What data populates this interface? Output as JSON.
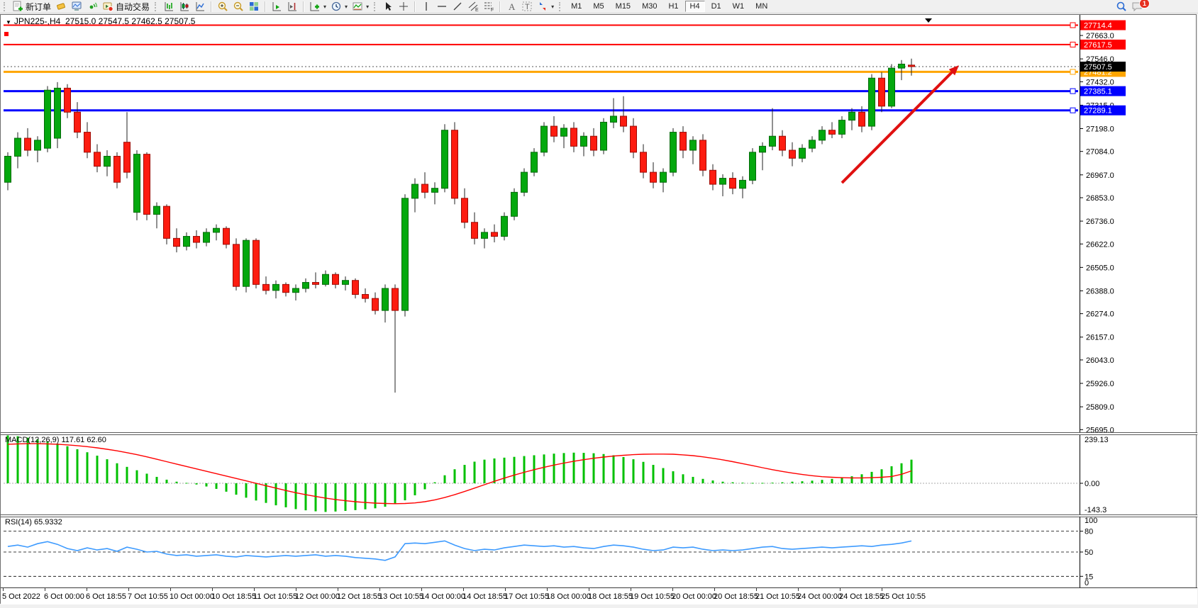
{
  "toolbar": {
    "new_order": "新订单",
    "autotrading": "自动交易",
    "timeframes": [
      "M1",
      "M5",
      "M15",
      "M30",
      "H1",
      "H4",
      "D1",
      "W1",
      "MN"
    ],
    "active_timeframe": "H4",
    "notification_count": "1"
  },
  "chart": {
    "symbol_period": "JPN225-,H4",
    "ohlc_text": "27515.0 27547.5 27462.5 27507.5",
    "bid_badge": "27507.5"
  },
  "colors": {
    "bull": "#04a80e",
    "bull_edge": "#026a08",
    "bear": "#fd1c10",
    "bear_edge": "#9e0b05",
    "wick": "#222222",
    "macd_hist": "#00c000",
    "macd_signal": "#ff0000",
    "rsi_line": "#3e9bff",
    "level_red": "#ff0000",
    "level_orange": "#ffa500",
    "level_blue": "#0000ff",
    "arrow": "#e01010",
    "bid_badge_bg": "#000000"
  },
  "chart_data": [
    {
      "type": "candlestick",
      "title": "JPN225- H4",
      "ylim": [
        25674,
        27741
      ],
      "axis_ticks": [
        27663,
        27546,
        27432,
        27315,
        27198,
        27084,
        26967,
        26853,
        26736,
        26622,
        26505,
        26388,
        26274,
        26157,
        26043,
        25926,
        25809,
        25695
      ],
      "levels": [
        {
          "price": 27714.4,
          "label": "27714.4",
          "color": "#ff0000",
          "width": 2
        },
        {
          "price": 27617.5,
          "label": "27617.5",
          "color": "#ff0000",
          "width": 2
        },
        {
          "price": 27481.2,
          "label": "27481.2",
          "color": "#ffa500",
          "width": 3
        },
        {
          "price": 27385.1,
          "label": "27385.1",
          "color": "#0000ff",
          "width": 3
        },
        {
          "price": 27289.1,
          "label": "27289.1",
          "color": "#0000ff",
          "width": 3
        }
      ],
      "bid": 27507.5,
      "time_labels": [
        "5 Oct 2022",
        "6 Oct 00:00",
        "6 Oct 18:55",
        "7 Oct 10:55",
        "10 Oct 00:00",
        "10 Oct 18:55",
        "11 Oct 10:55",
        "12 Oct 00:00",
        "12 Oct 18:55",
        "13 Oct 10:55",
        "14 Oct 00:00",
        "14 Oct 18:55",
        "17 Oct 10:55",
        "18 Oct 00:00",
        "18 Oct 18:55",
        "19 Oct 10:55",
        "20 Oct 00:00",
        "20 Oct 18:55",
        "21 Oct 10:55",
        "24 Oct 00:00",
        "24 Oct 18:55",
        "25 Oct 10:55"
      ],
      "candles_ohlc": [
        [
          26930,
          27080,
          26890,
          27060
        ],
        [
          27060,
          27180,
          27000,
          27150
        ],
        [
          27150,
          27200,
          27060,
          27090
        ],
        [
          27090,
          27160,
          27030,
          27140
        ],
        [
          27100,
          27410,
          27080,
          27390
        ],
        [
          27150,
          27430,
          27100,
          27400
        ],
        [
          27400,
          27420,
          27250,
          27280
        ],
        [
          27280,
          27330,
          27150,
          27180
        ],
        [
          27180,
          27230,
          27050,
          27080
        ],
        [
          27080,
          27120,
          26980,
          27010
        ],
        [
          27010,
          27090,
          26960,
          27060
        ],
        [
          27060,
          27080,
          26900,
          26930
        ],
        [
          27130,
          27280,
          26950,
          26980
        ],
        [
          26780,
          27090,
          26740,
          27070
        ],
        [
          27070,
          27080,
          26740,
          26770
        ],
        [
          26770,
          26830,
          26700,
          26810
        ],
        [
          26810,
          26820,
          26620,
          26650
        ],
        [
          26650,
          26700,
          26580,
          26610
        ],
        [
          26610,
          26680,
          26590,
          26660
        ],
        [
          26660,
          26690,
          26600,
          26630
        ],
        [
          26630,
          26700,
          26610,
          26680
        ],
        [
          26680,
          26720,
          26640,
          26700
        ],
        [
          26700,
          26710,
          26600,
          26620
        ],
        [
          26620,
          26650,
          26390,
          26410
        ],
        [
          26410,
          26650,
          26380,
          26640
        ],
        [
          26640,
          26650,
          26400,
          26420
        ],
        [
          26420,
          26460,
          26370,
          26390
        ],
        [
          26390,
          26440,
          26350,
          26420
        ],
        [
          26420,
          26430,
          26360,
          26380
        ],
        [
          26380,
          26420,
          26340,
          26400
        ],
        [
          26400,
          26450,
          26380,
          26430
        ],
        [
          26430,
          26480,
          26400,
          26420
        ],
        [
          26420,
          26490,
          26410,
          26470
        ],
        [
          26470,
          26480,
          26400,
          26420
        ],
        [
          26420,
          26460,
          26390,
          26440
        ],
        [
          26440,
          26450,
          26350,
          26370
        ],
        [
          26370,
          26400,
          26330,
          26350
        ],
        [
          26350,
          26380,
          26270,
          26290
        ],
        [
          26290,
          26420,
          26230,
          26400
        ],
        [
          26400,
          26420,
          25880,
          26290
        ],
        [
          26290,
          26870,
          26260,
          26850
        ],
        [
          26850,
          26950,
          26780,
          26920
        ],
        [
          26920,
          26980,
          26850,
          26880
        ],
        [
          26880,
          26930,
          26820,
          26900
        ],
        [
          26900,
          27220,
          26880,
          27190
        ],
        [
          27190,
          27230,
          26820,
          26850
        ],
        [
          26850,
          26900,
          26700,
          26730
        ],
        [
          26730,
          26780,
          26620,
          26650
        ],
        [
          26650,
          26700,
          26600,
          26680
        ],
        [
          26680,
          26720,
          26630,
          26660
        ],
        [
          26660,
          26780,
          26640,
          26760
        ],
        [
          26760,
          26900,
          26740,
          26880
        ],
        [
          26880,
          27000,
          26860,
          26980
        ],
        [
          26980,
          27100,
          26960,
          27080
        ],
        [
          27080,
          27230,
          27060,
          27210
        ],
        [
          27210,
          27260,
          27130,
          27160
        ],
        [
          27160,
          27220,
          27100,
          27200
        ],
        [
          27200,
          27230,
          27080,
          27110
        ],
        [
          27110,
          27180,
          27060,
          27160
        ],
        [
          27160,
          27200,
          27060,
          27090
        ],
        [
          27090,
          27250,
          27070,
          27230
        ],
        [
          27230,
          27350,
          27200,
          27260
        ],
        [
          27260,
          27360,
          27180,
          27210
        ],
        [
          27210,
          27250,
          27050,
          27080
        ],
        [
          27080,
          27120,
          26950,
          26980
        ],
        [
          26980,
          27030,
          26900,
          26930
        ],
        [
          26930,
          27000,
          26880,
          26980
        ],
        [
          26980,
          27200,
          26960,
          27180
        ],
        [
          27180,
          27210,
          27050,
          27090
        ],
        [
          27090,
          27160,
          27020,
          27140
        ],
        [
          27140,
          27170,
          26960,
          26990
        ],
        [
          26990,
          27020,
          26890,
          26920
        ],
        [
          26920,
          26970,
          26860,
          26950
        ],
        [
          26950,
          26980,
          26870,
          26900
        ],
        [
          26900,
          26960,
          26850,
          26940
        ],
        [
          26940,
          27100,
          26920,
          27080
        ],
        [
          27080,
          27130,
          26990,
          27110
        ],
        [
          27110,
          27300,
          27090,
          27160
        ],
        [
          27160,
          27190,
          27060,
          27090
        ],
        [
          27090,
          27130,
          27010,
          27050
        ],
        [
          27050,
          27120,
          27030,
          27100
        ],
        [
          27100,
          27160,
          27080,
          27140
        ],
        [
          27140,
          27210,
          27120,
          27190
        ],
        [
          27190,
          27230,
          27150,
          27170
        ],
        [
          27170,
          27260,
          27150,
          27240
        ],
        [
          27240,
          27300,
          27190,
          27280
        ],
        [
          27280,
          27310,
          27180,
          27210
        ],
        [
          27210,
          27470,
          27190,
          27450
        ],
        [
          27450,
          27480,
          27280,
          27310
        ],
        [
          27310,
          27520,
          27300,
          27500
        ],
        [
          27500,
          27540,
          27440,
          27520
        ],
        [
          27515,
          27547.5,
          27462.5,
          27507.5
        ]
      ]
    },
    {
      "type": "bar",
      "name": "MACD",
      "label": "MACD(12,26,9) 117.61 62.60",
      "ylim": [
        -143.3,
        239.13
      ],
      "max_label": "239.13",
      "zero_label": "0.00",
      "min_label": "-143.3",
      "values": [
        239,
        235,
        228,
        220,
        210,
        198,
        185,
        170,
        155,
        138,
        120,
        100,
        82,
        65,
        48,
        32,
        18,
        8,
        2,
        -6,
        -16,
        -28,
        -42,
        -57,
        -72,
        -86,
        -98,
        -110,
        -120,
        -129,
        -135,
        -140,
        -143,
        -141,
        -138,
        -134,
        -130,
        -125,
        -117,
        -104,
        -85,
        -60,
        -30,
        5,
        40,
        70,
        92,
        108,
        118,
        124,
        128,
        132,
        136,
        140,
        144,
        148,
        151,
        153,
        152,
        150,
        146,
        140,
        131,
        120,
        107,
        92,
        76,
        60,
        45,
        32,
        22,
        14,
        8,
        5,
        3,
        2,
        2,
        3,
        5,
        8,
        10,
        13,
        17,
        22,
        28,
        35,
        45,
        57,
        70,
        85,
        100,
        118
      ],
      "signal": [
        195,
        197,
        198,
        198,
        197,
        195,
        192,
        188,
        183,
        177,
        170,
        162,
        153,
        143,
        132,
        120,
        108,
        96,
        84,
        72,
        60,
        48,
        36,
        24,
        12,
        0,
        -12,
        -24,
        -36,
        -47,
        -57,
        -66,
        -74,
        -81,
        -87,
        -92,
        -96,
        -99,
        -101,
        -102,
        -101,
        -98,
        -92,
        -83,
        -71,
        -57,
        -41,
        -24,
        -7,
        10,
        26,
        41,
        55,
        68,
        80,
        91,
        101,
        110,
        118,
        125,
        131,
        136,
        140,
        143,
        145,
        146,
        146,
        145,
        142,
        138,
        132,
        125,
        117,
        108,
        98,
        88,
        78,
        68,
        59,
        51,
        44,
        38,
        33,
        30,
        28,
        27,
        27,
        28,
        30,
        34,
        45,
        62
      ]
    },
    {
      "type": "line",
      "name": "RSI",
      "label": "RSI(14) 65.9332",
      "ylim": [
        0,
        100
      ],
      "axis_labels": [
        "100",
        "80",
        "50",
        "15",
        "0"
      ],
      "dashed_levels": [
        80,
        50,
        15
      ],
      "values": [
        58,
        60,
        57,
        62,
        65,
        61,
        55,
        52,
        56,
        53,
        55,
        51,
        57,
        54,
        50,
        51,
        47,
        45,
        46,
        44,
        45,
        46,
        44,
        43,
        45,
        44,
        43,
        44,
        45,
        44,
        45,
        46,
        44,
        45,
        44,
        42,
        41,
        40,
        38,
        43,
        62,
        63,
        62,
        64,
        66,
        60,
        55,
        52,
        54,
        53,
        56,
        58,
        60,
        59,
        58,
        59,
        57,
        58,
        56,
        55,
        58,
        60,
        59,
        57,
        54,
        52,
        53,
        57,
        56,
        57,
        54,
        52,
        53,
        52,
        53,
        55,
        57,
        58,
        55,
        54,
        55,
        56,
        57,
        56,
        57,
        58,
        59,
        58,
        60,
        61,
        63,
        65.9
      ]
    }
  ]
}
